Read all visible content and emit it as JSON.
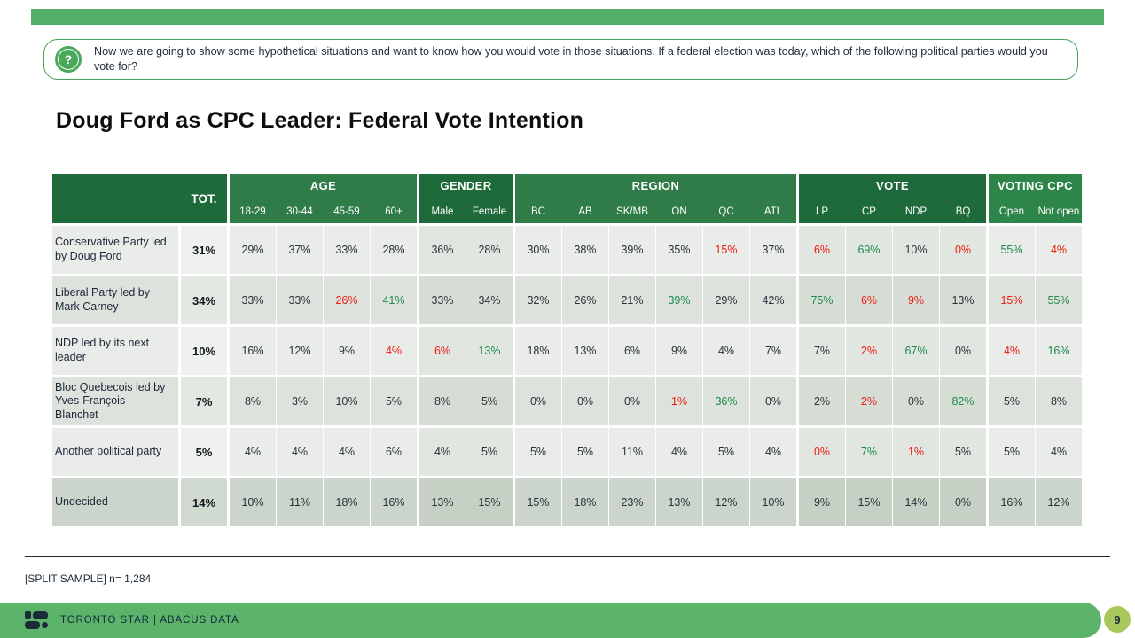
{
  "page": {
    "question": "Now we are going to show some hypothetical situations and want to know how you would vote in those situations. If a federal election was today, which of the following political parties would you vote for?",
    "question_icon": "?",
    "title": "Doug Ford as CPC Leader: Federal Vote Intention",
    "footnote": "[SPLIT SAMPLE] n= 1,284",
    "footer_brand": "TORONTO STAR | ABACUS DATA",
    "page_number": "9"
  },
  "colors": {
    "top_bar_green": "#55ae65",
    "question_border_green": "#47a257",
    "header_dark_green": "#1e6a3a",
    "header_mid_green": "#2f7c48",
    "header_bright_green": "#2e8549",
    "footer_green": "#5cb46b",
    "badge_yellow_green": "#a9c75c",
    "accent_red": "#ed1b10",
    "accent_green": "#1e8a4b",
    "ink_navy": "#1d2b39"
  },
  "table": {
    "tot_label": "TOT.",
    "groups": [
      {
        "label": "",
        "shade": "dark",
        "cols": [
          "TOT."
        ]
      },
      {
        "label": "AGE",
        "shade": "mid",
        "cols": [
          "18-29",
          "30-44",
          "45-59",
          "60+"
        ]
      },
      {
        "label": "GENDER",
        "shade": "dark",
        "cols": [
          "Male",
          "Female"
        ]
      },
      {
        "label": "REGION",
        "shade": "mid",
        "cols": [
          "BC",
          "AB",
          "SK/MB",
          "ON",
          "QC",
          "ATL"
        ]
      },
      {
        "label": "VOTE",
        "shade": "dark",
        "cols": [
          "LP",
          "CP",
          "NDP",
          "BQ"
        ]
      },
      {
        "label": "VOTING CPC",
        "shade": "bright",
        "cols": [
          "Open",
          "Not open"
        ]
      }
    ],
    "row_shades": [
      "light",
      "mid",
      "light",
      "mid",
      "light",
      "dark"
    ],
    "rows": [
      {
        "label": "Conservative Party led by Doug Ford",
        "values": [
          "31%",
          "29%",
          "37%",
          "33%",
          "28%",
          "36%",
          "28%",
          "30%",
          "38%",
          "39%",
          "35%",
          "15%",
          "37%",
          "6%",
          "69%",
          "10%",
          "0%",
          "55%",
          "4%"
        ],
        "colors": [
          "b",
          "k",
          "k",
          "k",
          "k",
          "k",
          "k",
          "k",
          "k",
          "k",
          "k",
          "r",
          "k",
          "r",
          "g",
          "k",
          "r",
          "g",
          "r"
        ]
      },
      {
        "label": "Liberal Party led by Mark Carney",
        "values": [
          "34%",
          "33%",
          "33%",
          "26%",
          "41%",
          "33%",
          "34%",
          "32%",
          "26%",
          "21%",
          "39%",
          "29%",
          "42%",
          "75%",
          "6%",
          "9%",
          "13%",
          "15%",
          "55%"
        ],
        "colors": [
          "b",
          "k",
          "k",
          "r",
          "g",
          "k",
          "k",
          "k",
          "k",
          "k",
          "g",
          "k",
          "k",
          "g",
          "r",
          "r",
          "k",
          "r",
          "g"
        ]
      },
      {
        "label": "NDP led by its next leader",
        "values": [
          "10%",
          "16%",
          "12%",
          "9%",
          "4%",
          "6%",
          "13%",
          "18%",
          "13%",
          "6%",
          "9%",
          "4%",
          "7%",
          "7%",
          "2%",
          "67%",
          "0%",
          "4%",
          "16%"
        ],
        "colors": [
          "b",
          "k",
          "k",
          "k",
          "r",
          "r",
          "g",
          "k",
          "k",
          "k",
          "k",
          "k",
          "k",
          "k",
          "r",
          "g",
          "k",
          "r",
          "g"
        ]
      },
      {
        "label": "Bloc Quebecois led by Yves-François Blanchet",
        "values": [
          "7%",
          "8%",
          "3%",
          "10%",
          "5%",
          "8%",
          "5%",
          "0%",
          "0%",
          "0%",
          "1%",
          "36%",
          "0%",
          "2%",
          "2%",
          "0%",
          "82%",
          "5%",
          "8%"
        ],
        "colors": [
          "b",
          "k",
          "k",
          "k",
          "k",
          "k",
          "k",
          "k",
          "k",
          "k",
          "r",
          "g",
          "k",
          "k",
          "r",
          "k",
          "g",
          "k",
          "k"
        ]
      },
      {
        "label": "Another political party",
        "values": [
          "5%",
          "4%",
          "4%",
          "4%",
          "6%",
          "4%",
          "5%",
          "5%",
          "5%",
          "11%",
          "4%",
          "5%",
          "4%",
          "0%",
          "7%",
          "1%",
          "5%",
          "5%",
          "4%"
        ],
        "colors": [
          "b",
          "k",
          "k",
          "k",
          "k",
          "k",
          "k",
          "k",
          "k",
          "k",
          "k",
          "k",
          "k",
          "r",
          "g",
          "r",
          "k",
          "k",
          "k"
        ]
      },
      {
        "label": "Undecided",
        "values": [
          "14%",
          "10%",
          "11%",
          "18%",
          "16%",
          "13%",
          "15%",
          "15%",
          "18%",
          "23%",
          "13%",
          "12%",
          "10%",
          "9%",
          "15%",
          "14%",
          "0%",
          "16%",
          "12%"
        ],
        "colors": [
          "b",
          "k",
          "k",
          "k",
          "k",
          "k",
          "k",
          "k",
          "k",
          "k",
          "k",
          "k",
          "k",
          "k",
          "k",
          "k",
          "k",
          "k",
          "k"
        ]
      }
    ]
  }
}
